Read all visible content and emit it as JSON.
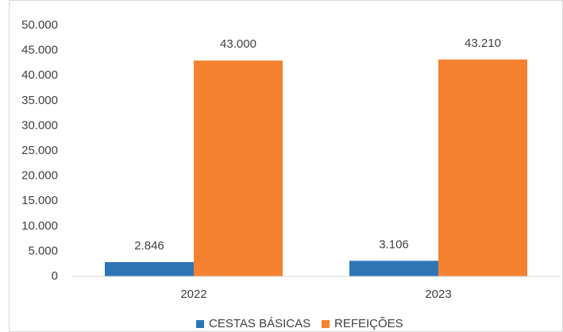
{
  "chart_data": {
    "type": "bar",
    "categories": [
      "2022",
      "2023"
    ],
    "series": [
      {
        "name": "CESTAS BÁSICAS",
        "color": "#2e75b6",
        "values": [
          2846,
          3106
        ],
        "value_labels": [
          "2.846",
          "3.106"
        ]
      },
      {
        "name": "REFEIÇÕES",
        "color": "#f58230",
        "values": [
          43000,
          43210
        ],
        "value_labels": [
          "43.000",
          "43.210"
        ]
      }
    ],
    "ylim": [
      0,
      50000
    ],
    "yticks": [
      0,
      {
        "value": 5000,
        "label": "5.000"
      },
      {
        "value": 10000,
        "label": "10.000"
      },
      {
        "value": 15000,
        "label": "15.000"
      },
      {
        "value": 20000,
        "label": "20.000"
      },
      {
        "value": 25000,
        "label": "25.000"
      },
      {
        "value": 30000,
        "label": "30.000"
      },
      {
        "value": 35000,
        "label": "35.000"
      },
      {
        "value": 40000,
        "label": "40.000"
      },
      {
        "value": 45000,
        "label": "45.000"
      },
      {
        "value": 50000,
        "label": "50.000"
      }
    ],
    "grid": false,
    "legend": "bottom"
  }
}
